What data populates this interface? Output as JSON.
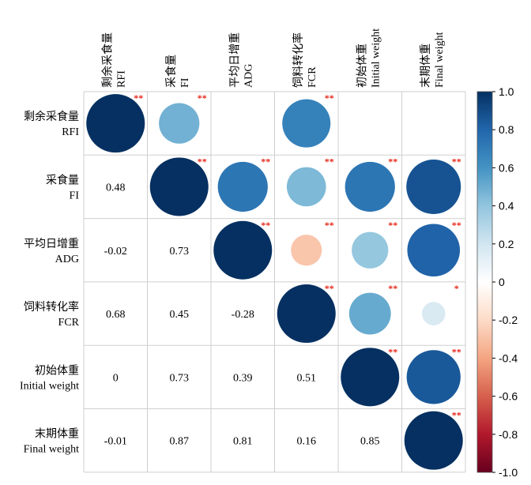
{
  "chart_data": {
    "type": "heatmap",
    "variables": [
      {
        "cn": "剩余采食量",
        "en": "RFI"
      },
      {
        "cn": "采食量",
        "en": "FI"
      },
      {
        "cn": "平均日增重",
        "en": "ADG"
      },
      {
        "cn": "饲料转化率",
        "en": "FCR"
      },
      {
        "cn": "初始体重",
        "en": "Initial weight"
      },
      {
        "cn": "末期体重",
        "en": "Final weight"
      }
    ],
    "matrix": [
      [
        1.0,
        0.48,
        -0.02,
        0.68,
        0.0,
        -0.01
      ],
      [
        0.48,
        1.0,
        0.73,
        0.45,
        0.73,
        0.87
      ],
      [
        -0.02,
        0.73,
        1.0,
        -0.28,
        0.39,
        0.81
      ],
      [
        0.68,
        0.45,
        -0.28,
        1.0,
        0.51,
        0.16
      ],
      [
        0.0,
        0.73,
        0.39,
        0.51,
        1.0,
        0.85
      ],
      [
        -0.01,
        0.87,
        0.81,
        0.16,
        0.85,
        1.0
      ]
    ],
    "lower_labels": [
      [
        "",
        "",
        "",
        "",
        "",
        ""
      ],
      [
        "0.48",
        "",
        "",
        "",
        "",
        ""
      ],
      [
        "-0.02",
        "0.73",
        "",
        "",
        "",
        ""
      ],
      [
        "0.68",
        "0.45",
        "-0.28",
        "",
        "",
        ""
      ],
      [
        "0",
        "0.73",
        "0.39",
        "0.51",
        "",
        ""
      ],
      [
        "-0.01",
        "0.87",
        "0.81",
        "0.16",
        "0.85",
        ""
      ]
    ],
    "upper_circles": [
      [
        {
          "r": 1.0,
          "sig": "**"
        },
        {
          "r": 0.48,
          "sig": "**"
        },
        null,
        {
          "r": 0.68,
          "sig": "**"
        },
        null,
        null
      ],
      [
        null,
        {
          "r": 1.0,
          "sig": "**"
        },
        {
          "r": 0.73,
          "sig": "**"
        },
        {
          "r": 0.45,
          "sig": "**"
        },
        {
          "r": 0.73,
          "sig": "**"
        },
        {
          "r": 0.87,
          "sig": "**"
        }
      ],
      [
        null,
        null,
        {
          "r": 1.0,
          "sig": "**"
        },
        {
          "r": -0.28,
          "sig": "**"
        },
        {
          "r": 0.39,
          "sig": "**"
        },
        {
          "r": 0.81,
          "sig": "**"
        }
      ],
      [
        null,
        null,
        null,
        {
          "r": 1.0,
          "sig": "**"
        },
        {
          "r": 0.51,
          "sig": "**"
        },
        {
          "r": 0.16,
          "sig": "*"
        }
      ],
      [
        null,
        null,
        null,
        null,
        {
          "r": 1.0,
          "sig": "**"
        },
        {
          "r": 0.85,
          "sig": "**"
        }
      ],
      [
        null,
        null,
        null,
        null,
        null,
        {
          "r": 1.0,
          "sig": "**"
        }
      ]
    ],
    "colorbar": {
      "range": [
        -1,
        1
      ],
      "ticks": [
        "1.0",
        "0.8",
        "0.6",
        "0.4",
        "0.2",
        "0",
        "-0.2",
        "-0.4",
        "-0.6",
        "-0.8",
        "-1.0"
      ]
    },
    "colors": {
      "neg_strong": "#67001F",
      "neg_mid": "#F4A582",
      "neutral": "#FFFFFF",
      "pos_mid": "#92C5DE",
      "pos_strong": "#053061",
      "sig_mark": "#E8291C",
      "grid": "#CFCFCF"
    }
  }
}
